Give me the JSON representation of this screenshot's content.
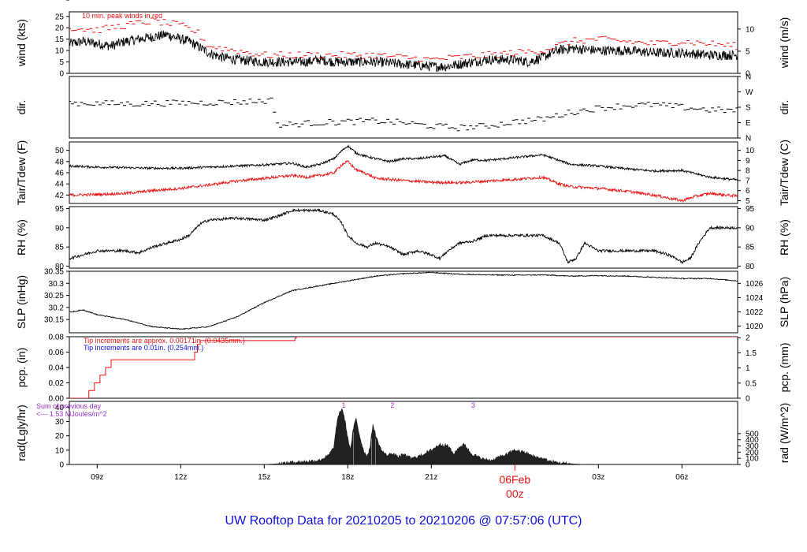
{
  "title": "UW Rooftop Data for 20210205  to  20210206 @ 07:57:06  (UTC)",
  "colors": {
    "black": "#000000",
    "red": "#ee1111",
    "blue": "#1111dd",
    "purple": "#9933cc",
    "title": "#1010dd"
  },
  "xaxis": {
    "range": [
      8,
      32
    ],
    "ticks": [
      {
        "x": 9,
        "label": "09z"
      },
      {
        "x": 12,
        "label": "12z"
      },
      {
        "x": 15,
        "label": "15z"
      },
      {
        "x": 18,
        "label": "18z"
      },
      {
        "x": 21,
        "label": "21z"
      },
      {
        "x": 27,
        "label": "03z"
      },
      {
        "x": 30,
        "label": "06z"
      }
    ],
    "date_mark": {
      "x": 24,
      "label1": "06Feb",
      "label2": "00z"
    }
  },
  "chart_data": [
    {
      "id": "wind",
      "type": "line",
      "ylabel_left": "wind (kts)",
      "ylabel_right": "wind (m/s)",
      "ylim": [
        0,
        27
      ],
      "yticks_left": [
        0,
        5,
        10,
        15,
        20,
        25
      ],
      "yticks_right": [
        {
          "v": 0,
          "label": "0"
        },
        {
          "v": 9.72,
          "label": "5"
        },
        {
          "v": 19.44,
          "label": "10"
        }
      ],
      "annotation": "10 min. peak winds in red",
      "series": [
        {
          "color": "black",
          "style": "noisy",
          "noise": 2.2,
          "x": [
            8,
            8.5,
            9,
            9.5,
            10,
            10.5,
            11,
            11.5,
            12,
            12.3,
            12.6,
            13,
            13.5,
            14,
            15,
            16,
            16.5,
            17,
            17.5,
            18,
            19,
            20,
            21,
            21.5,
            22,
            23,
            24,
            24.5,
            25,
            25.5,
            26,
            27,
            28,
            29,
            30,
            31,
            32
          ],
          "y": [
            13,
            14,
            13,
            12,
            14,
            15,
            16,
            17,
            15,
            14,
            12,
            9,
            7,
            6,
            5,
            5,
            5,
            6,
            5,
            5,
            5,
            4,
            3,
            3,
            4,
            6,
            6,
            5,
            7,
            10,
            11,
            10,
            10,
            9,
            9,
            8,
            8
          ]
        },
        {
          "color": "red",
          "style": "dashes",
          "noise": 1.5,
          "x": [
            8,
            9,
            10,
            11,
            12,
            12.6,
            13,
            14,
            15,
            16,
            17,
            18,
            19,
            20,
            21,
            22,
            23,
            24,
            25,
            26,
            27,
            28,
            29,
            30,
            31,
            32
          ],
          "y": [
            20,
            19,
            21,
            23,
            21,
            18,
            12,
            10,
            8,
            8,
            8,
            8,
            8,
            7,
            6,
            7,
            8,
            9,
            10,
            14,
            15,
            14,
            13,
            14,
            13,
            12
          ]
        }
      ]
    },
    {
      "id": "dir",
      "type": "scatter",
      "ylabel_left": "dir.",
      "ylabel_right": "dir.",
      "ylim": [
        0,
        360
      ],
      "yticks_left": [
        {
          "v": 0,
          "label": "N"
        },
        {
          "v": 90,
          "label": "E"
        },
        {
          "v": 180,
          "label": "S"
        },
        {
          "v": 270,
          "label": "W"
        },
        {
          "v": 360,
          "label": "N"
        }
      ],
      "yticks_right": [
        {
          "v": 0,
          "label": "N"
        },
        {
          "v": 90,
          "label": "E"
        },
        {
          "v": 180,
          "label": "S"
        },
        {
          "v": 270,
          "label": "W"
        },
        {
          "v": 360,
          "label": "N"
        }
      ],
      "series": [
        {
          "color": "black",
          "style": "dashes",
          "noise": 18,
          "x": [
            8,
            10,
            12,
            14,
            15.3,
            15.5,
            16,
            17,
            18,
            19,
            20,
            21,
            22,
            23,
            24,
            25,
            26,
            27,
            28,
            29,
            30,
            31,
            32
          ],
          "y": [
            205,
            200,
            205,
            210,
            220,
            70,
            80,
            90,
            95,
            100,
            90,
            70,
            60,
            70,
            95,
            110,
            150,
            175,
            190,
            195,
            180,
            165,
            160
          ]
        }
      ]
    },
    {
      "id": "temp",
      "type": "line",
      "ylabel_left": "Tair/Tdew (F)",
      "ylabel_right": "Tair/Tdew (C)",
      "ylim": [
        40.5,
        51.5
      ],
      "yticks_left": [
        42,
        44,
        46,
        48,
        50
      ],
      "yticks_right": [
        {
          "v": 41,
          "label": "5"
        },
        {
          "v": 42.8,
          "label": "6"
        },
        {
          "v": 44.6,
          "label": "7"
        },
        {
          "v": 46.4,
          "label": "8"
        },
        {
          "v": 48.2,
          "label": "9"
        },
        {
          "v": 50,
          "label": "10"
        }
      ],
      "series": [
        {
          "color": "black",
          "style": "noisy",
          "noise": 0.2,
          "x": [
            8,
            9,
            10,
            11,
            12,
            13,
            14,
            15,
            16,
            16.5,
            17,
            17.5,
            17.8,
            18,
            18.3,
            18.6,
            19,
            19.5,
            20,
            20.5,
            21,
            21.5,
            22,
            22.5,
            23,
            24,
            25,
            26,
            27,
            28,
            29,
            30,
            31,
            32
          ],
          "y": [
            47.2,
            47,
            46.9,
            46.8,
            46.8,
            47,
            47.2,
            47.4,
            47.7,
            47,
            47.5,
            48.5,
            50,
            50.8,
            49.5,
            49,
            48.5,
            48,
            48.5,
            48.5,
            48.8,
            49,
            47.5,
            48.3,
            48.2,
            48.7,
            49.2,
            47.5,
            47.2,
            46.7,
            46.3,
            46.4,
            45.2,
            44.7
          ]
        },
        {
          "color": "red",
          "style": "noisy",
          "noise": 0.25,
          "x": [
            8,
            9,
            10,
            11,
            12,
            13,
            14,
            15,
            16,
            16.5,
            17,
            17.5,
            17.8,
            18,
            18.3,
            18.6,
            19,
            20,
            21,
            22,
            23,
            24,
            25,
            25.6,
            26,
            27,
            28,
            29,
            29.5,
            30,
            30.5,
            31,
            32
          ],
          "y": [
            42,
            42.1,
            42.3,
            42.8,
            43.2,
            43.8,
            44.5,
            45,
            45.5,
            45.2,
            45.5,
            46,
            47.5,
            48,
            46.5,
            46,
            45,
            44.6,
            44.3,
            44.2,
            44.5,
            44.8,
            45.2,
            44,
            43.5,
            43.2,
            42.7,
            42,
            41.5,
            41,
            41.8,
            42.3,
            41.8
          ]
        }
      ]
    },
    {
      "id": "rh",
      "type": "line",
      "ylabel_left": "RH (%)",
      "ylabel_right": "RH (%)",
      "ylim": [
        79.5,
        95.5
      ],
      "yticks_left": [
        80,
        85,
        90,
        95
      ],
      "yticks_right": [
        {
          "v": 80,
          "label": "80"
        },
        {
          "v": 85,
          "label": "85"
        },
        {
          "v": 90,
          "label": "90"
        },
        {
          "v": 95,
          "label": "95"
        }
      ],
      "series": [
        {
          "color": "black",
          "style": "noisy",
          "noise": 0.35,
          "x": [
            8,
            8.5,
            9,
            10,
            10.5,
            11,
            11.5,
            12,
            12.3,
            12.7,
            13,
            14,
            15,
            15.5,
            16,
            17,
            17.5,
            17.8,
            18,
            18.3,
            18.7,
            19,
            19.5,
            20,
            20.5,
            21,
            21.3,
            21.6,
            22,
            22.5,
            23,
            24,
            25,
            25.6,
            25.9,
            26.2,
            26.5,
            27,
            28,
            29,
            29.5,
            29.8,
            30,
            30.3,
            30.6,
            31,
            32
          ],
          "y": [
            82,
            83,
            84,
            84,
            83.5,
            85,
            86,
            87,
            88,
            91,
            92,
            92.5,
            92,
            93,
            94.5,
            94.5,
            93.5,
            91,
            88,
            86,
            85,
            86,
            85,
            83,
            84,
            83,
            82,
            84,
            86,
            86.5,
            88,
            88,
            88,
            86,
            81,
            82,
            86,
            84,
            84,
            84,
            83,
            82,
            81,
            82,
            86,
            90,
            90
          ]
        }
      ]
    },
    {
      "id": "slp",
      "type": "line",
      "ylabel_left": "SLP (inHg)",
      "ylabel_right": "SLP (hPa)",
      "ylim": [
        30.095,
        30.35
      ],
      "yticks_left": [
        30.15,
        30.2,
        30.25,
        30.3,
        30.35
      ],
      "yticks_right": [
        {
          "v": 30.1225,
          "label": "1020"
        },
        {
          "v": 30.1816,
          "label": "1022"
        },
        {
          "v": 30.2406,
          "label": "1024"
        },
        {
          "v": 30.2997,
          "label": "1026"
        }
      ],
      "series": [
        {
          "color": "black",
          "style": "noisy",
          "noise": 0.002,
          "x": [
            8,
            8.5,
            9,
            10,
            11,
            12,
            13,
            14,
            15,
            16,
            17,
            18,
            19,
            20,
            21,
            22,
            23,
            24,
            25,
            26,
            27,
            28,
            29,
            30,
            31,
            32
          ],
          "y": [
            30.18,
            30.19,
            30.17,
            30.15,
            30.12,
            30.11,
            30.12,
            30.16,
            30.22,
            30.27,
            30.29,
            30.31,
            30.33,
            30.34,
            30.345,
            30.338,
            30.335,
            30.334,
            30.335,
            30.33,
            30.332,
            30.33,
            30.325,
            30.32,
            30.32,
            30.31
          ]
        }
      ]
    },
    {
      "id": "pcp",
      "type": "line",
      "ylabel_left": "pcp. (in)",
      "ylabel_right": "pcp. (mm)",
      "ylim": [
        0,
        0.08
      ],
      "yticks_left": [
        0,
        0.02,
        0.04,
        0.06,
        0.08
      ],
      "yticklabels_left": [
        "0.00",
        "0.02",
        "0.04",
        "0.06",
        "0.08"
      ],
      "yticks_right": [
        {
          "v": 0,
          "label": "0"
        },
        {
          "v": 0.01969,
          "label": "0.5"
        },
        {
          "v": 0.03937,
          "label": "1"
        },
        {
          "v": 0.05906,
          "label": "1.5"
        },
        {
          "v": 0.07874,
          "label": "2"
        }
      ],
      "annotation1": "Tip increments are approx. 0.00171in. (0.0435mm.)",
      "annotation2": "Tip increments are 0.01in. (0.254mm.)",
      "series": [
        {
          "color": "red",
          "style": "step",
          "x": [
            8,
            8.7,
            8.9,
            9.1,
            9.3,
            9.5,
            9.7,
            12.5,
            12.6,
            12.7,
            16.1,
            16.15,
            32
          ],
          "y": [
            0,
            0.01,
            0.02,
            0.03,
            0.04,
            0.05,
            0.05,
            0.06,
            0.07,
            0.075,
            0.078,
            0.08,
            0.08
          ]
        }
      ]
    },
    {
      "id": "rad",
      "type": "area",
      "ylabel_left": "rad(Lgly/hr)",
      "ylabel_right": "rad (W/m^2)",
      "ylim": [
        0,
        44
      ],
      "yticks_left": [
        0,
        10,
        20,
        30,
        40
      ],
      "yticks_right": [
        {
          "v": 0,
          "label": "0"
        },
        {
          "v": 4.3,
          "label": "100"
        },
        {
          "v": 8.6,
          "label": "200"
        },
        {
          "v": 12.9,
          "label": "300"
        },
        {
          "v": 17.2,
          "label": "400"
        },
        {
          "v": 21.5,
          "label": "500"
        }
      ],
      "annotation1": "Sum of previous day",
      "annotation2": "<--- 1.53 MJoules/m^2",
      "markers": [
        {
          "x": 17.85,
          "label": "1"
        },
        {
          "x": 19.6,
          "label": "2"
        },
        {
          "x": 22.5,
          "label": "3"
        }
      ],
      "series": [
        {
          "color": "black",
          "style": "area",
          "noise": 1.2,
          "x": [
            15,
            15.5,
            16,
            16.5,
            17,
            17.3,
            17.5,
            17.6,
            17.7,
            17.8,
            17.9,
            18,
            18.1,
            18.2,
            18.3,
            18.4,
            18.5,
            18.6,
            18.7,
            18.8,
            18.9,
            19,
            19.2,
            19.4,
            19.6,
            19.8,
            20,
            20.3,
            20.6,
            21,
            21.3,
            21.6,
            21.8,
            22,
            22.2,
            22.4,
            22.6,
            22.8,
            23,
            23.2,
            23.4,
            23.6,
            23.8,
            24,
            24.2,
            24.4,
            24.6,
            24.8,
            25,
            25.3,
            25.6,
            26,
            26.5
          ],
          "y": [
            0,
            0.5,
            1.5,
            2,
            3,
            6,
            12,
            28,
            36,
            39,
            30,
            18,
            10,
            25,
            32,
            22,
            14,
            8,
            6,
            12,
            28,
            20,
            10,
            6,
            8,
            5,
            7,
            4,
            6,
            10,
            14,
            13,
            7,
            12,
            14,
            8,
            6,
            4,
            3,
            3,
            5,
            6,
            8,
            10,
            9,
            8,
            6,
            5,
            4,
            2,
            1,
            0.5,
            0
          ]
        }
      ]
    }
  ]
}
